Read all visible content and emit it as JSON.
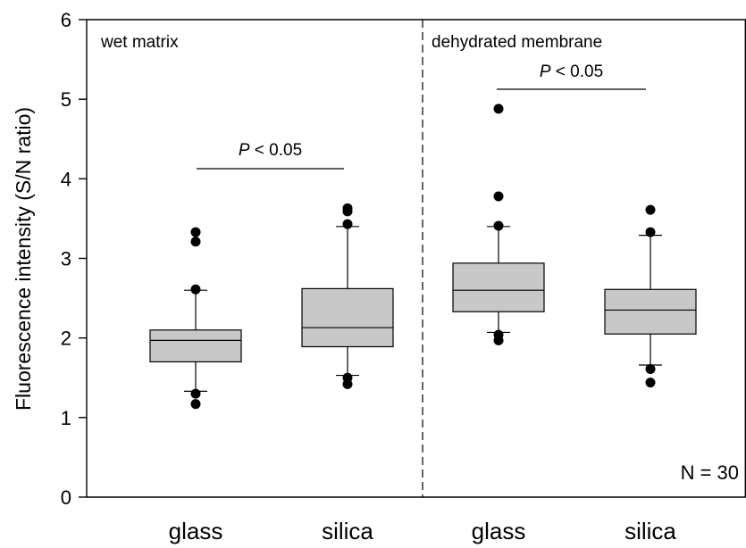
{
  "chart_data": {
    "type": "box",
    "ylabel": "Fluorescence intensity (S/N ratio)",
    "ylim": [
      0,
      6
    ],
    "yticks": [
      "0",
      "1",
      "2",
      "3",
      "4",
      "5",
      "6"
    ],
    "grid": false,
    "panels": [
      {
        "label": "wet  matrix",
        "significance": "P < 0.05"
      },
      {
        "label": "dehydrated  membrane",
        "significance": "P < 0.05"
      }
    ],
    "categories": [
      "glass",
      "silica",
      "glass",
      "silica"
    ],
    "boxes": [
      {
        "panel": 0,
        "category": "glass",
        "q1": 1.7,
        "median": 1.97,
        "q3": 2.1,
        "whisker_low": 1.33,
        "whisker_high": 2.6,
        "outliers": [
          1.17,
          1.3,
          2.61,
          3.21,
          3.33
        ]
      },
      {
        "panel": 0,
        "category": "silica",
        "q1": 1.89,
        "median": 2.13,
        "q3": 2.62,
        "whisker_low": 1.53,
        "whisker_high": 3.4,
        "outliers": [
          1.42,
          1.5,
          3.43,
          3.59,
          3.63
        ]
      },
      {
        "panel": 1,
        "category": "glass",
        "q1": 2.33,
        "median": 2.6,
        "q3": 2.94,
        "whisker_low": 2.07,
        "whisker_high": 3.4,
        "outliers": [
          1.97,
          2.04,
          3.41,
          3.78,
          4.88
        ]
      },
      {
        "panel": 1,
        "category": "silica",
        "q1": 2.05,
        "median": 2.35,
        "q3": 2.61,
        "whisker_low": 1.66,
        "whisker_high": 3.29,
        "outliers": [
          1.44,
          1.61,
          3.33,
          3.61
        ]
      }
    ],
    "annotation": "N = 30",
    "box_color": "#c8c8c8"
  }
}
